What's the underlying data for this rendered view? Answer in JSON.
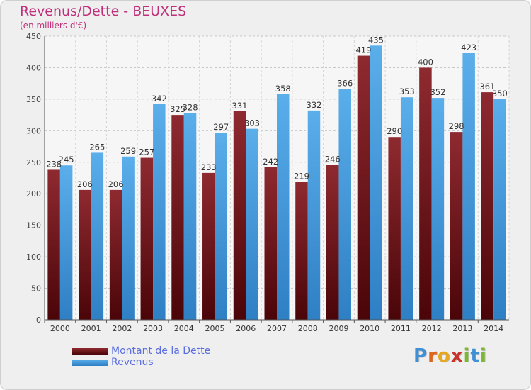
{
  "header": {
    "title": "Revenus/Dette - BEUXES",
    "subtitle": "(en milliers d'€)"
  },
  "logo": {
    "text": "Proxiti",
    "letters": [
      "P",
      "r",
      "o",
      "x",
      "i",
      "t",
      "i"
    ],
    "letter_colors": [
      "#3d8fd6",
      "#e0661c",
      "#e5a81e",
      "#c7342b",
      "#7cb82f",
      "#3d8fd6",
      "#7cb82f"
    ]
  },
  "chart_data": {
    "type": "bar",
    "categories": [
      "2000",
      "2001",
      "2002",
      "2003",
      "2004",
      "2005",
      "2006",
      "2007",
      "2008",
      "2009",
      "2010",
      "2011",
      "2012",
      "2013",
      "2014"
    ],
    "series": [
      {
        "name": "Montant de la Dette",
        "color": "#7a1e22",
        "values": [
          238,
          206,
          206,
          257,
          325,
          233,
          331,
          242,
          219,
          246,
          419,
          290,
          400,
          298,
          361
        ]
      },
      {
        "name": "Revenus",
        "color": "#4fa3e3",
        "values": [
          245,
          265,
          259,
          342,
          328,
          297,
          303,
          358,
          332,
          366,
          435,
          353,
          352,
          423,
          350
        ]
      }
    ],
    "ylim": [
      0,
      450
    ],
    "yticks": [
      0,
      50,
      100,
      150,
      200,
      250,
      300,
      350,
      400,
      450
    ],
    "grid": true,
    "legend_position": "bottom-left"
  }
}
